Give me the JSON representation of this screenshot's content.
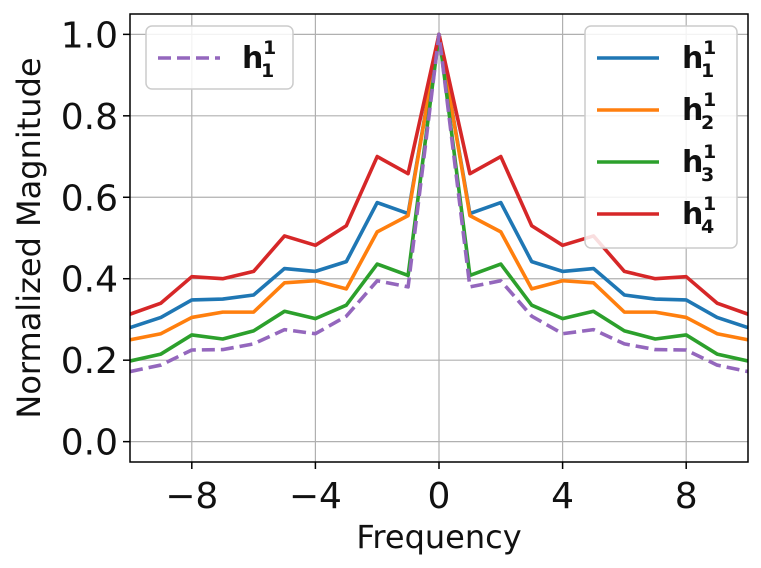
{
  "chart_data": {
    "type": "line",
    "xlabel": "Frequency",
    "ylabel": "Normalized Magnitude",
    "xlim": [
      -10,
      10
    ],
    "ylim": [
      -0.05,
      1.05
    ],
    "xticks": [
      -8,
      -4,
      0,
      4,
      8
    ],
    "xtick_labels": [
      "−8",
      "−4",
      "0",
      "4",
      "8"
    ],
    "yticks": [
      0.0,
      0.2,
      0.4,
      0.6,
      0.8,
      1.0
    ],
    "ytick_labels": [
      "0.0",
      "0.2",
      "0.4",
      "0.6",
      "0.8",
      "1.0"
    ],
    "grid": true,
    "x": [
      -10,
      -9,
      -8,
      -7,
      -6,
      -5,
      -4,
      -3,
      -2,
      -1,
      0,
      1,
      2,
      3,
      4,
      5,
      6,
      7,
      8,
      9,
      10
    ],
    "series": [
      {
        "name": "h_1^1",
        "label_base": "h",
        "label_sup": "1",
        "label_sub": "1",
        "color": "#1f77b4",
        "dash": false,
        "values": [
          0.28,
          0.305,
          0.348,
          0.35,
          0.36,
          0.425,
          0.418,
          0.442,
          0.587,
          0.56,
          1.0,
          0.56,
          0.587,
          0.442,
          0.418,
          0.425,
          0.36,
          0.35,
          0.348,
          0.305,
          0.28
        ]
      },
      {
        "name": "h_2^1",
        "label_base": "h",
        "label_sup": "1",
        "label_sub": "2",
        "color": "#ff7f0e",
        "dash": false,
        "values": [
          0.25,
          0.265,
          0.305,
          0.318,
          0.318,
          0.39,
          0.395,
          0.375,
          0.515,
          0.555,
          1.0,
          0.555,
          0.515,
          0.375,
          0.395,
          0.39,
          0.318,
          0.318,
          0.305,
          0.265,
          0.25
        ]
      },
      {
        "name": "h_3^1",
        "label_base": "h",
        "label_sup": "1",
        "label_sub": "3",
        "color": "#2ca02c",
        "dash": false,
        "values": [
          0.198,
          0.215,
          0.262,
          0.252,
          0.272,
          0.32,
          0.302,
          0.335,
          0.436,
          0.408,
          1.0,
          0.408,
          0.436,
          0.335,
          0.302,
          0.32,
          0.272,
          0.252,
          0.262,
          0.215,
          0.198
        ]
      },
      {
        "name": "h_4^1",
        "label_base": "h",
        "label_sup": "1",
        "label_sub": "4",
        "color": "#d62728",
        "dash": false,
        "values": [
          0.313,
          0.34,
          0.405,
          0.4,
          0.418,
          0.505,
          0.482,
          0.53,
          0.7,
          0.658,
          1.0,
          0.658,
          0.7,
          0.53,
          0.482,
          0.505,
          0.418,
          0.4,
          0.405,
          0.34,
          0.313
        ]
      },
      {
        "name": "h_1^1",
        "label_base": "h",
        "label_sup": "1",
        "label_sub": "1",
        "color": "#9467bd",
        "dash": true,
        "values": [
          0.172,
          0.188,
          0.225,
          0.226,
          0.24,
          0.275,
          0.265,
          0.308,
          0.395,
          0.38,
          1.0,
          0.38,
          0.395,
          0.308,
          0.265,
          0.275,
          0.24,
          0.226,
          0.225,
          0.188,
          0.172
        ]
      }
    ],
    "legends": [
      {
        "position": "upper-left",
        "entries": [
          4
        ]
      },
      {
        "position": "upper-right",
        "entries": [
          0,
          1,
          2,
          3
        ]
      }
    ]
  }
}
